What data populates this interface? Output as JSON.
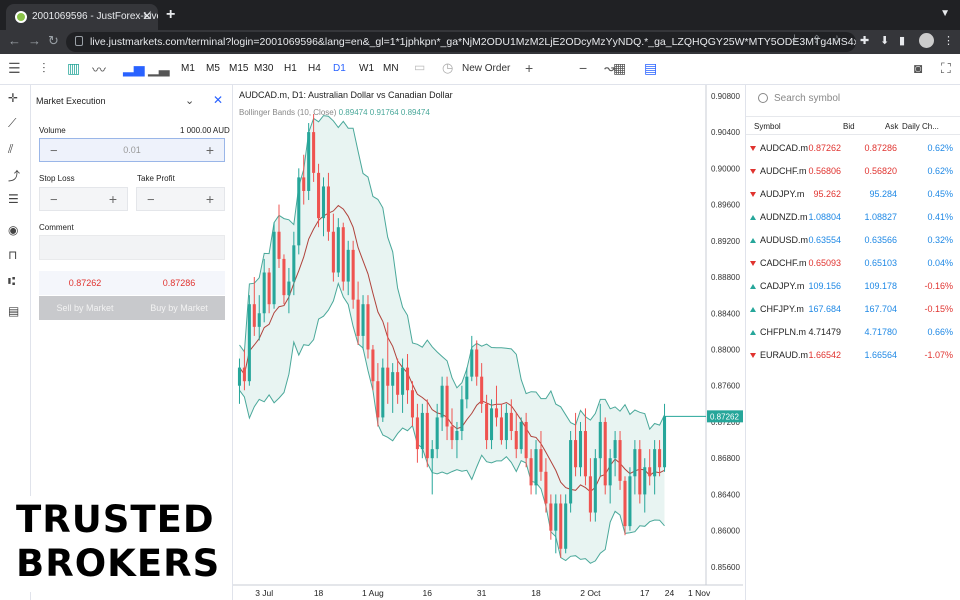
{
  "browser": {
    "tab_title": "2001069596 - JustForex-Live",
    "url": "live.justmarkets.com/terminal?login=2001069596&lang=en&_gl=1*1jphkpn*_ga*NjM2ODU1MzM2LjE2ODcyMzYyNDQ.*_ga_LZQHQGY25W*MTY5ODE3MTg4MS4x..."
  },
  "toolbar": {
    "timeframes": [
      "M1",
      "M5",
      "M15",
      "M30",
      "H1",
      "H4",
      "D1",
      "W1",
      "MN"
    ],
    "active_timeframe": "D1",
    "new_order_label": "New Order"
  },
  "order_panel": {
    "title": "Market Execution",
    "volume_label": "Volume",
    "volume_info": "1 000.00 AUD",
    "volume_value": "0.01",
    "stop_loss_label": "Stop Loss",
    "take_profit_label": "Take Profit",
    "comment_label": "Comment",
    "bid_price": "0.87262",
    "ask_price": "0.87286",
    "sell_label": "Sell by Market",
    "buy_label": "Buy by Market"
  },
  "chart": {
    "title": "AUDCAD.m, D1: Australian Dollar vs Canadian Dollar",
    "indicator_label": "Bollinger Bands (10, Close)",
    "indicator_values": "0.89474 0.91764 0.89474",
    "y_ticks": [
      "0.90800",
      "0.90400",
      "0.90000",
      "0.89600",
      "0.89200",
      "0.88800",
      "0.88400",
      "0.88000",
      "0.87600",
      "0.87200",
      "0.86800",
      "0.86400",
      "0.86000",
      "0.85600"
    ],
    "x_ticks": [
      "3 Jul",
      "18",
      "1 Aug",
      "16",
      "31",
      "18",
      "2 Oct",
      "17",
      "24",
      "1 Nov"
    ],
    "last_price": "0.87262",
    "colors": {
      "up": "#26a69a",
      "down": "#ef5350",
      "band": "#4aa89a",
      "band_fill": "#e8f4f2",
      "mid": "#b0433c"
    }
  },
  "chart_data": {
    "type": "candlestick",
    "title": "AUDCAD.m, D1: Australian Dollar vs Canadian Dollar",
    "ylim": [
      0.854,
      0.9092
    ],
    "y_ticks": [
      0.908,
      0.904,
      0.9,
      0.896,
      0.892,
      0.888,
      0.884,
      0.88,
      0.876,
      0.872,
      0.868,
      0.864,
      0.86,
      0.856
    ],
    "x_tick_labels": [
      "3 Jul",
      "18",
      "1 Aug",
      "16",
      "31",
      "18",
      "2 Oct",
      "17",
      "24",
      "1 Nov"
    ],
    "x_tick_index": [
      5,
      16,
      27,
      38,
      49,
      60,
      71,
      82,
      87,
      93
    ],
    "last_price": 0.87262,
    "candles": [
      [
        0.876,
        0.879,
        0.874,
        0.878
      ],
      [
        0.878,
        0.88,
        0.8755,
        0.8765
      ],
      [
        0.8765,
        0.886,
        0.876,
        0.885
      ],
      [
        0.885,
        0.888,
        0.8815,
        0.8825
      ],
      [
        0.8825,
        0.886,
        0.881,
        0.884
      ],
      [
        0.884,
        0.89,
        0.883,
        0.8885
      ],
      [
        0.8885,
        0.889,
        0.884,
        0.885
      ],
      [
        0.885,
        0.894,
        0.8845,
        0.893
      ],
      [
        0.893,
        0.896,
        0.889,
        0.89
      ],
      [
        0.89,
        0.8905,
        0.885,
        0.886
      ],
      [
        0.886,
        0.889,
        0.884,
        0.8875
      ],
      [
        0.8875,
        0.893,
        0.886,
        0.8915
      ],
      [
        0.8915,
        0.9,
        0.8905,
        0.899
      ],
      [
        0.899,
        0.9015,
        0.896,
        0.8975
      ],
      [
        0.8975,
        0.905,
        0.8965,
        0.904
      ],
      [
        0.904,
        0.906,
        0.8985,
        0.8995
      ],
      [
        0.8995,
        0.9005,
        0.8935,
        0.8945
      ],
      [
        0.8945,
        0.899,
        0.8925,
        0.898
      ],
      [
        0.898,
        0.8995,
        0.892,
        0.893
      ],
      [
        0.893,
        0.895,
        0.8875,
        0.8885
      ],
      [
        0.8885,
        0.8945,
        0.888,
        0.8935
      ],
      [
        0.8935,
        0.894,
        0.8865,
        0.8875
      ],
      [
        0.8875,
        0.892,
        0.886,
        0.891
      ],
      [
        0.891,
        0.892,
        0.8845,
        0.8855
      ],
      [
        0.8855,
        0.8875,
        0.8805,
        0.8815
      ],
      [
        0.8815,
        0.886,
        0.88,
        0.885
      ],
      [
        0.885,
        0.886,
        0.879,
        0.88
      ],
      [
        0.88,
        0.8805,
        0.8755,
        0.8765
      ],
      [
        0.8765,
        0.8785,
        0.8715,
        0.8725
      ],
      [
        0.8725,
        0.879,
        0.872,
        0.878
      ],
      [
        0.878,
        0.883,
        0.874,
        0.876
      ],
      [
        0.876,
        0.8785,
        0.873,
        0.8775
      ],
      [
        0.8775,
        0.879,
        0.874,
        0.875
      ],
      [
        0.875,
        0.879,
        0.873,
        0.878
      ],
      [
        0.878,
        0.8795,
        0.874,
        0.8755
      ],
      [
        0.8755,
        0.8765,
        0.8715,
        0.8725
      ],
      [
        0.8725,
        0.874,
        0.8675,
        0.869
      ],
      [
        0.869,
        0.874,
        0.868,
        0.873
      ],
      [
        0.873,
        0.8745,
        0.867,
        0.868
      ],
      [
        0.868,
        0.87,
        0.864,
        0.869
      ],
      [
        0.869,
        0.874,
        0.868,
        0.8725
      ],
      [
        0.8725,
        0.877,
        0.871,
        0.876
      ],
      [
        0.876,
        0.877,
        0.87,
        0.8715
      ],
      [
        0.8715,
        0.8735,
        0.869,
        0.87
      ],
      [
        0.87,
        0.872,
        0.868,
        0.871
      ],
      [
        0.871,
        0.876,
        0.87,
        0.8745
      ],
      [
        0.8745,
        0.878,
        0.8735,
        0.877
      ],
      [
        0.877,
        0.8815,
        0.8765,
        0.88
      ],
      [
        0.88,
        0.881,
        0.876,
        0.877
      ],
      [
        0.877,
        0.8785,
        0.873,
        0.874
      ],
      [
        0.874,
        0.875,
        0.869,
        0.87
      ],
      [
        0.87,
        0.8745,
        0.869,
        0.8735
      ],
      [
        0.8735,
        0.876,
        0.8715,
        0.8725
      ],
      [
        0.8725,
        0.874,
        0.8695,
        0.87
      ],
      [
        0.87,
        0.874,
        0.869,
        0.873
      ],
      [
        0.873,
        0.8745,
        0.87,
        0.871
      ],
      [
        0.871,
        0.873,
        0.868,
        0.869
      ],
      [
        0.869,
        0.8725,
        0.8685,
        0.872
      ],
      [
        0.872,
        0.873,
        0.867,
        0.868
      ],
      [
        0.868,
        0.869,
        0.864,
        0.865
      ],
      [
        0.865,
        0.87,
        0.864,
        0.869
      ],
      [
        0.869,
        0.871,
        0.8655,
        0.8665
      ],
      [
        0.8665,
        0.868,
        0.862,
        0.863
      ],
      [
        0.863,
        0.864,
        0.859,
        0.86
      ],
      [
        0.86,
        0.864,
        0.8575,
        0.863
      ],
      [
        0.863,
        0.864,
        0.857,
        0.858
      ],
      [
        0.858,
        0.864,
        0.8575,
        0.863
      ],
      [
        0.863,
        0.871,
        0.862,
        0.87
      ],
      [
        0.87,
        0.873,
        0.866,
        0.867
      ],
      [
        0.867,
        0.872,
        0.866,
        0.871
      ],
      [
        0.871,
        0.8735,
        0.865,
        0.866
      ],
      [
        0.866,
        0.868,
        0.861,
        0.862
      ],
      [
        0.862,
        0.869,
        0.861,
        0.868
      ],
      [
        0.868,
        0.874,
        0.866,
        0.872
      ],
      [
        0.872,
        0.8725,
        0.864,
        0.865
      ],
      [
        0.865,
        0.869,
        0.863,
        0.868
      ],
      [
        0.868,
        0.871,
        0.866,
        0.87
      ],
      [
        0.87,
        0.871,
        0.8645,
        0.8655
      ],
      [
        0.8655,
        0.866,
        0.8595,
        0.8605
      ],
      [
        0.8605,
        0.867,
        0.86,
        0.866
      ],
      [
        0.866,
        0.87,
        0.864,
        0.869
      ],
      [
        0.869,
        0.87,
        0.863,
        0.864
      ],
      [
        0.864,
        0.868,
        0.862,
        0.867
      ],
      [
        0.867,
        0.869,
        0.865,
        0.866
      ],
      [
        0.866,
        0.87,
        0.864,
        0.869
      ],
      [
        0.869,
        0.87,
        0.866,
        0.867
      ],
      [
        0.867,
        0.874,
        0.8665,
        0.8726
      ]
    ]
  },
  "symbols": {
    "search_placeholder": "Search symbol",
    "headers": {
      "symbol": "Symbol",
      "bid": "Bid",
      "ask": "Ask",
      "change": "Daily Ch..."
    },
    "rows": [
      {
        "symbol": "AUDCAD.m",
        "bid": "0.87262",
        "ask": "0.87286",
        "change": "0.62%",
        "dir": "down",
        "bid_color": "#e0332f",
        "ask_color": "#e0332f",
        "change_color": "#1e88e5"
      },
      {
        "symbol": "AUDCHF.m",
        "bid": "0.56806",
        "ask": "0.56820",
        "change": "0.62%",
        "dir": "down",
        "bid_color": "#e0332f",
        "ask_color": "#e0332f",
        "change_color": "#1e88e5"
      },
      {
        "symbol": "AUDJPY.m",
        "bid": "95.262",
        "ask": "95.284",
        "change": "0.45%",
        "dir": "down",
        "bid_color": "#e0332f",
        "ask_color": "#1e88e5",
        "change_color": "#1e88e5"
      },
      {
        "symbol": "AUDNZD.m",
        "bid": "1.08804",
        "ask": "1.08827",
        "change": "0.41%",
        "dir": "up",
        "bid_color": "#1e88e5",
        "ask_color": "#1e88e5",
        "change_color": "#1e88e5"
      },
      {
        "symbol": "AUDUSD.m",
        "bid": "0.63554",
        "ask": "0.63566",
        "change": "0.32%",
        "dir": "up",
        "bid_color": "#1e88e5",
        "ask_color": "#1e88e5",
        "change_color": "#1e88e5"
      },
      {
        "symbol": "CADCHF.m",
        "bid": "0.65093",
        "ask": "0.65103",
        "change": "0.04%",
        "dir": "down",
        "bid_color": "#e0332f",
        "ask_color": "#1e88e5",
        "change_color": "#1e88e5"
      },
      {
        "symbol": "CADJPY.m",
        "bid": "109.156",
        "ask": "109.178",
        "change": "-0.16%",
        "dir": "up",
        "bid_color": "#1e88e5",
        "ask_color": "#1e88e5",
        "change_color": "#e0332f"
      },
      {
        "symbol": "CHFJPY.m",
        "bid": "167.684",
        "ask": "167.704",
        "change": "-0.15%",
        "dir": "up",
        "bid_color": "#1e88e5",
        "ask_color": "#1e88e5",
        "change_color": "#e0332f"
      },
      {
        "symbol": "CHFPLN.m",
        "bid": "4.71479",
        "ask": "4.71780",
        "change": "0.66%",
        "dir": "up",
        "bid_color": "#222222",
        "ask_color": "#1e88e5",
        "change_color": "#1e88e5"
      },
      {
        "symbol": "EURAUD.m",
        "bid": "1.66542",
        "ask": "1.66564",
        "change": "-1.07%",
        "dir": "down",
        "bid_color": "#e0332f",
        "ask_color": "#1e88e5",
        "change_color": "#e0332f"
      }
    ]
  },
  "watermark": {
    "line1": "TRUSTED",
    "line2": "BROKERS"
  }
}
